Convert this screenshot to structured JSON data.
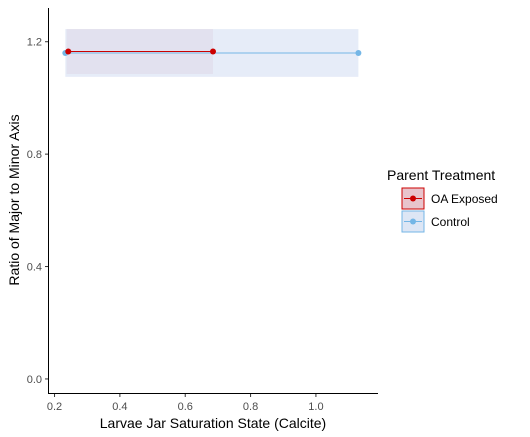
{
  "chart_data": {
    "type": "line",
    "xlabel": "Larvae Jar Saturation State (Calcite)",
    "ylabel": "Ratio of Major to Minor Axis",
    "xlim": [
      0.18,
      1.19
    ],
    "ylim": [
      -0.05,
      1.32
    ],
    "x_ticks": [
      0.2,
      0.4,
      0.6,
      0.8,
      1.0
    ],
    "x_tick_labels": [
      "0.2",
      "0.4",
      "0.6",
      "0.8",
      "1.0"
    ],
    "y_ticks": [
      0.0,
      0.4,
      0.8,
      1.2
    ],
    "y_tick_labels": [
      "0.0",
      "0.4",
      "0.8",
      "1.2"
    ],
    "grid": false,
    "legend_position": "right",
    "legend_title": "Parent Treatment",
    "series": [
      {
        "name": "OA Exposed",
        "color": "#cc0000",
        "fill": "#e8c4cc",
        "x": [
          0.242,
          0.685
        ],
        "y": [
          1.165,
          1.165
        ],
        "band": [
          [
            0.237,
            0.685
          ],
          [
            1.085,
            1.245
          ]
        ]
      },
      {
        "name": "Control",
        "color": "#74b6e6",
        "fill": "#dde6f5",
        "x": [
          0.233,
          1.13
        ],
        "y": [
          1.16,
          1.16
        ],
        "band": [
          [
            0.233,
            1.13
          ],
          [
            1.075,
            1.245
          ]
        ]
      }
    ]
  }
}
